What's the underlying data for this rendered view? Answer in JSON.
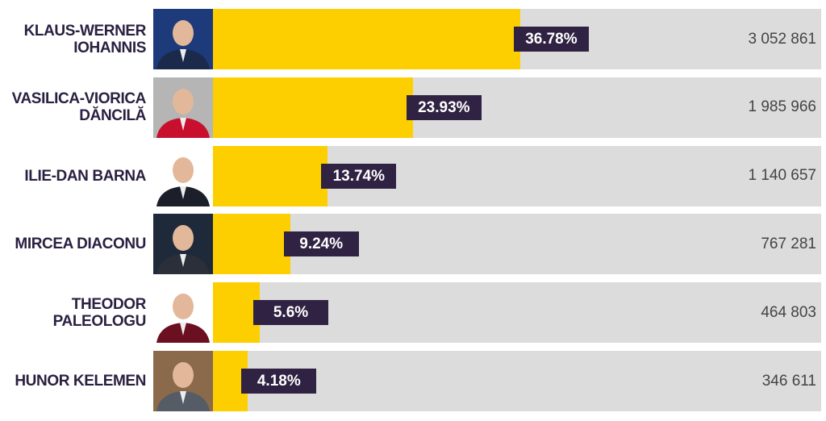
{
  "chart_data": {
    "type": "bar",
    "categories": [
      "KLAUS-WERNER IOHANNIS",
      "VASILICA-VIORICA DĂNCILĂ",
      "ILIE-DAN BARNA",
      "MIRCEA DIACONU",
      "THEODOR PALEOLOGU",
      "HUNOR KELEMEN"
    ],
    "values": [
      36.78,
      23.93,
      13.74,
      9.24,
      5.6,
      4.18
    ],
    "value_labels": [
      "36.78%",
      "23.93%",
      "13.74%",
      "9.24%",
      "5.6%",
      "4.18%"
    ],
    "color": "#fdcf00",
    "xlim": [
      0,
      72.8
    ],
    "votes": {
      "values": [
        3052861,
        1985966,
        1140657,
        767281,
        464803,
        346611
      ],
      "value_labels": [
        "3 052 861",
        "1 985 966",
        "1 140 657",
        "767 281",
        "464 803",
        "346 611"
      ]
    }
  }
}
